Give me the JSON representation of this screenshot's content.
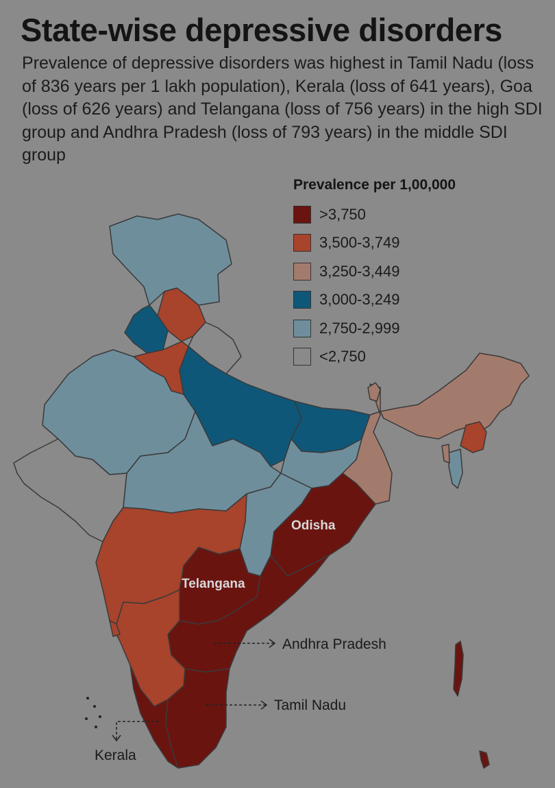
{
  "title": "State-wise depressive disorders",
  "subtitle": "Prevalence of depressive disorders was highest in Tamil Nadu (loss of 836 years per 1 lakh population), Kerala (loss of 641 years), Goa (loss of 626 years) and Telangana (loss of 756 years) in the high SDI group and Andhra Pradesh (loss of 793 years) in the middle SDI group",
  "legend": {
    "title": "Prevalence per 1,00,000",
    "items": [
      {
        "label": ">3,750",
        "color": "#6a1410"
      },
      {
        "label": "3,500-3,749",
        "color": "#a8432c"
      },
      {
        "label": "3,250-3,449",
        "color": "#a37b6c"
      },
      {
        "label": "3,000-3,249",
        "color": "#0f5778"
      },
      {
        "label": "2,750-2,999",
        "color": "#6f8e9c"
      },
      {
        "label": "<2,750",
        "color": "#8a8a8a"
      }
    ]
  },
  "map_labels": {
    "odisha": "Odisha",
    "telangana": "Telangana",
    "andhra_pradesh": "Andhra Pradesh",
    "tamil_nadu": "Tamil Nadu",
    "kerala": "Kerala"
  }
}
